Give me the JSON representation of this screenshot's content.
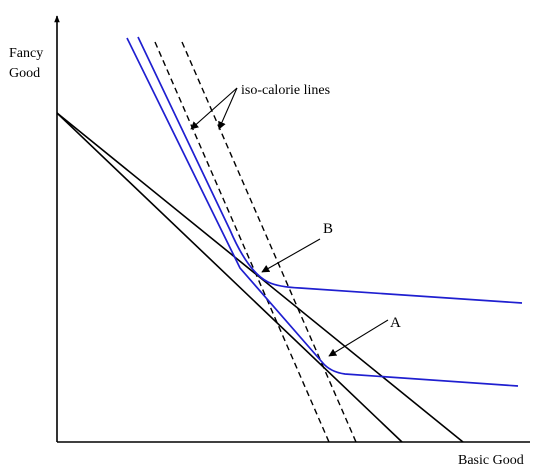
{
  "axes": {
    "y_label_line1": "Fancy",
    "y_label_line2": "Good",
    "x_label": "Basic Good"
  },
  "annotations": {
    "iso_calorie": "iso-calorie lines",
    "point_b": "B",
    "point_a": "A"
  },
  "colors": {
    "axis": "#000000",
    "budget_lines": "#000000",
    "iso_calorie_lines": "#000000",
    "indifference_curves": "#1f1fd0"
  },
  "line_styles": {
    "iso_calorie_lines": "dashed"
  }
}
